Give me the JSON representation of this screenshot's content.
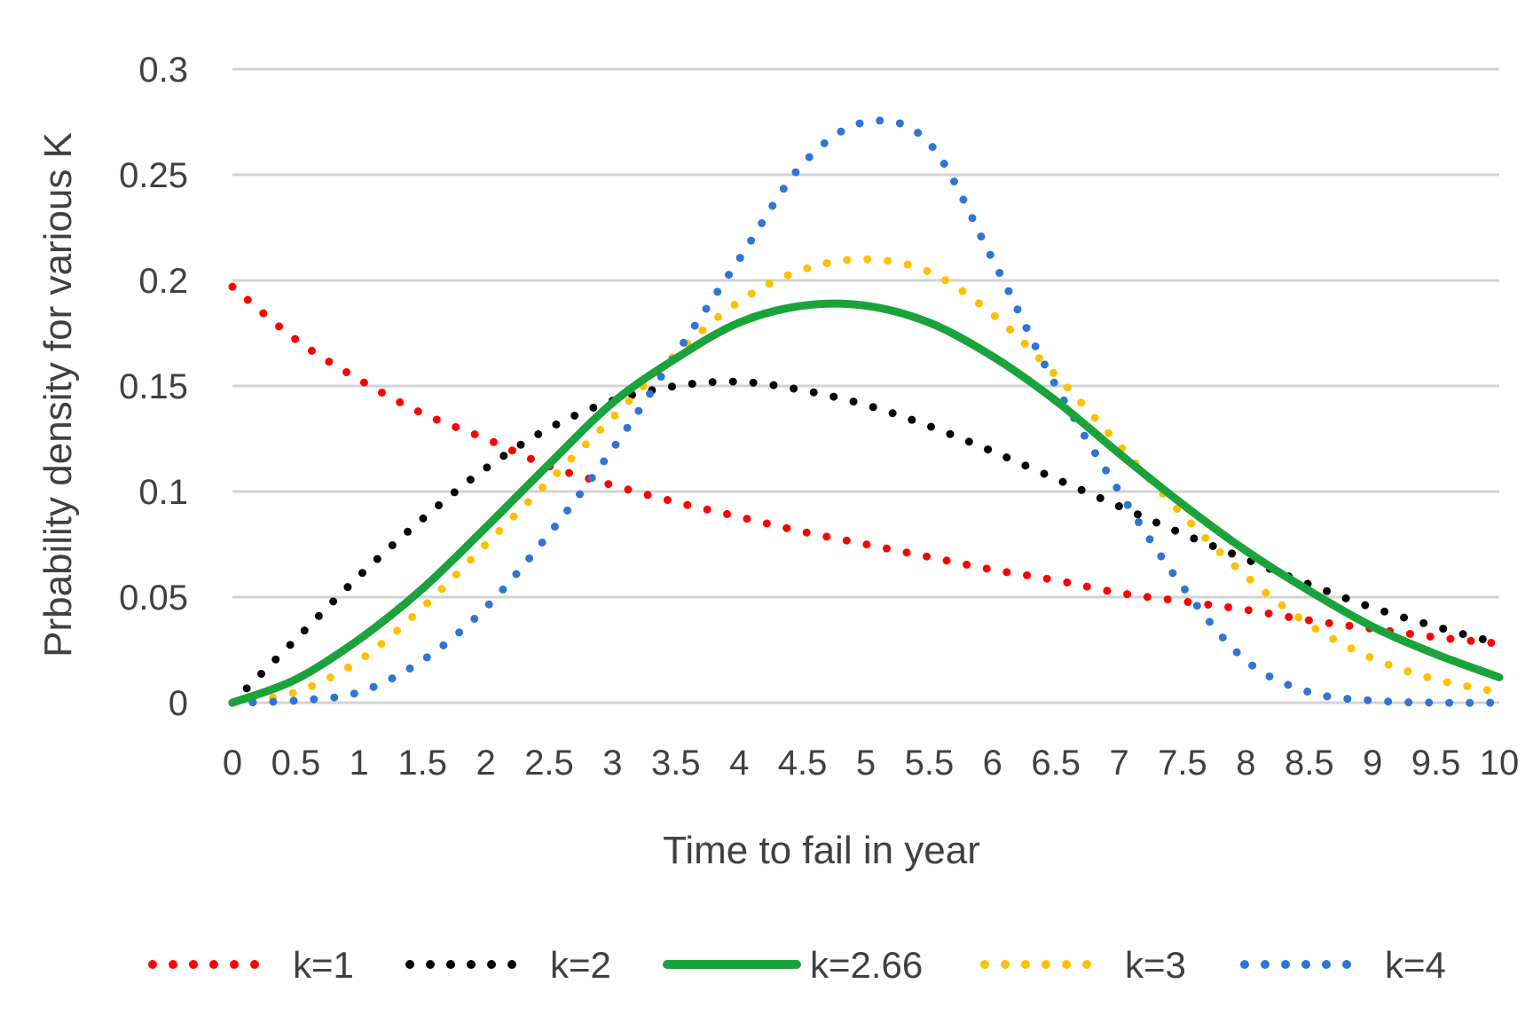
{
  "chart_data": {
    "type": "line",
    "title": "",
    "xlabel": "Time to fail in year",
    "ylabel": "Prbability density for various K",
    "xlim": [
      0,
      10
    ],
    "ylim": [
      0,
      0.3
    ],
    "x_ticks": [
      "0",
      "0.5",
      "1",
      "1.5",
      "2",
      "2.5",
      "3",
      "3.5",
      "4",
      "4.5",
      "5",
      "5.5",
      "6",
      "6.5",
      "7",
      "7.5",
      "8",
      "8.5",
      "9",
      "9.5",
      "10"
    ],
    "y_ticks": [
      "0",
      "0.05",
      "0.1",
      "0.15",
      "0.2",
      "0.25",
      "0.3"
    ],
    "grid": "horizontal",
    "legend_position": "bottom",
    "x": [
      0,
      0.5,
      1,
      1.5,
      2,
      2.5,
      3,
      3.5,
      4,
      4.5,
      5,
      5.5,
      6,
      6.5,
      7,
      7.5,
      8,
      8.5,
      9,
      9.5,
      10
    ],
    "series": [
      {
        "name": "k=1",
        "color": "#ff0000",
        "style": "dotted",
        "values": [
          0.197,
          0.172,
          0.153,
          0.137,
          0.125,
          0.112,
          0.103,
          0.095,
          0.088,
          0.081,
          0.075,
          0.069,
          0.063,
          0.058,
          0.052,
          0.048,
          0.044,
          0.039,
          0.035,
          0.031,
          0.028
        ]
      },
      {
        "name": "k=2",
        "color": "#000000",
        "style": "dotted",
        "values": [
          0.0,
          0.03,
          0.06,
          0.087,
          0.111,
          0.13,
          0.143,
          0.15,
          0.152,
          0.148,
          0.141,
          0.131,
          0.119,
          0.106,
          0.093,
          0.08,
          0.068,
          0.056,
          0.045,
          0.036,
          0.028
        ]
      },
      {
        "name": "k=2.66",
        "color": "#1aa33a",
        "style": "solid",
        "values": [
          0.0,
          0.011,
          0.03,
          0.054,
          0.083,
          0.113,
          0.142,
          0.163,
          0.18,
          0.188,
          0.188,
          0.18,
          0.164,
          0.143,
          0.118,
          0.094,
          0.072,
          0.053,
          0.036,
          0.023,
          0.012
        ]
      },
      {
        "name": "k=3",
        "color": "#ffc000",
        "style": "dotted",
        "values": [
          0.0,
          0.005,
          0.02,
          0.045,
          0.075,
          0.105,
          0.135,
          0.165,
          0.19,
          0.205,
          0.21,
          0.204,
          0.184,
          0.155,
          0.122,
          0.089,
          0.06,
          0.037,
          0.021,
          0.011,
          0.005
        ]
      },
      {
        "name": "k=4",
        "color": "#2e75d6",
        "style": "dotted",
        "values": [
          0.0,
          0.001,
          0.005,
          0.02,
          0.045,
          0.08,
          0.12,
          0.165,
          0.21,
          0.255,
          0.275,
          0.265,
          0.21,
          0.15,
          0.1,
          0.055,
          0.02,
          0.005,
          0.001,
          0.0,
          0.0
        ]
      }
    ],
    "gridline_color": "#d3d3d3"
  }
}
